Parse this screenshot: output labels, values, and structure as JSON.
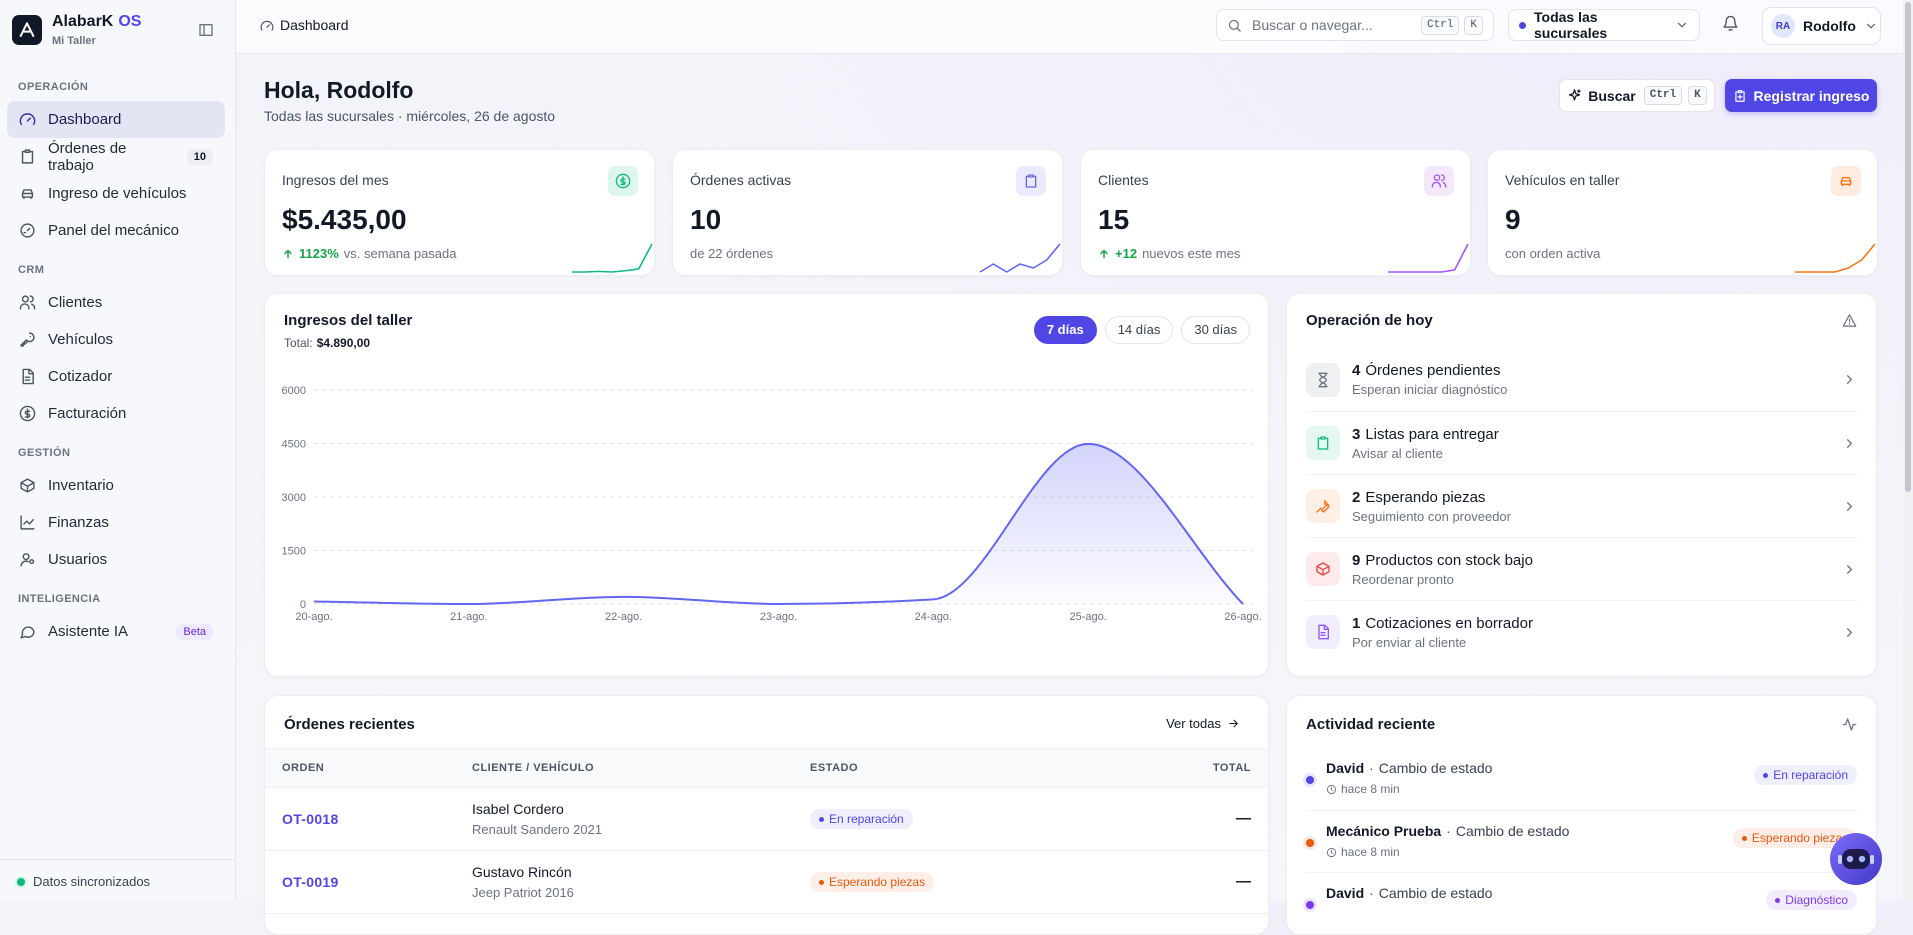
{
  "sidebar": {
    "brand": "AlabarK",
    "brand_accent": "OS",
    "workshop": "Mi Taller",
    "sections": [
      {
        "title": "OPERACIÓN",
        "items": [
          {
            "label": "Dashboard",
            "active": true
          },
          {
            "label": "Órdenes de trabajo",
            "badge": 10
          },
          {
            "label": "Ingreso de vehículos"
          },
          {
            "label": "Panel del mecánico"
          }
        ]
      },
      {
        "title": "CRM",
        "items": [
          {
            "label": "Clientes"
          },
          {
            "label": "Vehículos"
          },
          {
            "label": "Cotizador"
          },
          {
            "label": "Facturación"
          }
        ]
      },
      {
        "title": "GESTIÓN",
        "items": [
          {
            "label": "Inventario"
          },
          {
            "label": "Finanzas"
          },
          {
            "label": "Usuarios"
          }
        ]
      },
      {
        "title": "INTELIGENCIA",
        "items": [
          {
            "label": "Asistente IA",
            "badge": "Beta"
          }
        ]
      }
    ],
    "status": "Datos sincronizados"
  },
  "topbar": {
    "breadcrumb": "Dashboard",
    "search": "Buscar o navegar...",
    "keys": [
      "Ctrl",
      "K"
    ],
    "branch": "Todas las sucursales",
    "initials": "RA",
    "user": "Rodolfo"
  },
  "header": {
    "title": "Hola, Rodolfo",
    "subtitle": "Todas las sucursales · miércoles, 26 de agosto",
    "search_button": "Buscar",
    "keys": [
      "Ctrl",
      "K"
    ],
    "primary_button": "Registrar ingreso"
  },
  "stats": [
    {
      "label": "Ingresos del mes",
      "value": "$5.435,00",
      "delta": "1123%",
      "note": "vs. semana pasada",
      "color": "#10b981",
      "trend": [
        0,
        0,
        0.1,
        0,
        0.2,
        0.5,
        4.5
      ]
    },
    {
      "label": "Órdenes activas",
      "value": 10,
      "note": "de 22 órdenes",
      "color": "#6366f1",
      "trend": [
        1,
        2,
        1,
        2,
        1.5,
        2.5,
        4.5
      ]
    },
    {
      "label": "Clientes",
      "value": 15,
      "delta": "+12",
      "note": "nuevos este mes",
      "color": "#a855f7",
      "trend": [
        0,
        0,
        0,
        0,
        0,
        0.3,
        4
      ]
    },
    {
      "label": "Vehículos en taller",
      "value": 9,
      "note": "con orden activa",
      "color": "#f97316",
      "trend": [
        0,
        0,
        0,
        0,
        0.5,
        1.5,
        3.5
      ]
    }
  ],
  "chart_data": {
    "type": "area",
    "title": "Ingresos del taller",
    "total_label": "Total:",
    "total": "$4.890,00",
    "ranges": [
      "7 días",
      "14 días",
      "30 días"
    ],
    "active_range": 0,
    "categories": [
      "20-ago.",
      "21-ago.",
      "22-ago.",
      "23-ago.",
      "24-ago.",
      "25-ago.",
      "26-ago."
    ],
    "values": [
      70,
      0,
      200,
      0,
      130,
      4490,
      0
    ],
    "ylim": [
      0,
      6000
    ],
    "yticks": [
      0,
      1500,
      3000,
      4500,
      6000
    ],
    "grid": true,
    "color": "#6366f1"
  },
  "today": {
    "title": "Operación de hoy",
    "items": [
      {
        "count": 4,
        "label": "Órdenes pendientes",
        "detail": "Esperan iniciar diagnóstico",
        "color": "#6b7280"
      },
      {
        "count": 3,
        "label": "Listas para entregar",
        "detail": "Avisar al cliente",
        "color": "#10b981"
      },
      {
        "count": 2,
        "label": "Esperando piezas",
        "detail": "Seguimiento con proveedor",
        "color": "#f97316"
      },
      {
        "count": 9,
        "label": "Productos con stock bajo",
        "detail": "Reordenar pronto",
        "color": "#ef4444"
      },
      {
        "count": 1,
        "label": "Cotizaciones en borrador",
        "detail": "Por enviar al cliente",
        "color": "#8b5cf6"
      }
    ]
  },
  "orders": {
    "title": "Órdenes recientes",
    "link": "Ver todas",
    "columns": [
      "ORDEN",
      "CLIENTE / VEHÍCULO",
      "ESTADO",
      "TOTAL"
    ],
    "rows": [
      {
        "id": "OT-0018",
        "client": "Isabel Cordero",
        "vehicle": "Renault Sandero 2021",
        "status": "En reparación",
        "status_color": "#4f46e5",
        "total": "—"
      },
      {
        "id": "OT-0019",
        "client": "Gustavo Rincón",
        "vehicle": "Jeep Patriot 2016",
        "status": "Esperando piezas",
        "status_color": "#ea580c",
        "total": "—"
      }
    ]
  },
  "activity": {
    "title": "Actividad reciente",
    "separator": "·",
    "items": [
      {
        "user": "David",
        "action": "Cambio de estado",
        "time": "hace 8 min",
        "status": "En reparación",
        "color": "#4f46e5"
      },
      {
        "user": "Mecánico Prueba",
        "action": "Cambio de estado",
        "time": "hace 8 min",
        "status": "Esperando piezas",
        "color": "#ea580c"
      },
      {
        "user": "David",
        "action": "Cambio de estado",
        "status": "Diagnóstico",
        "color": "#7c3aed"
      }
    ]
  }
}
